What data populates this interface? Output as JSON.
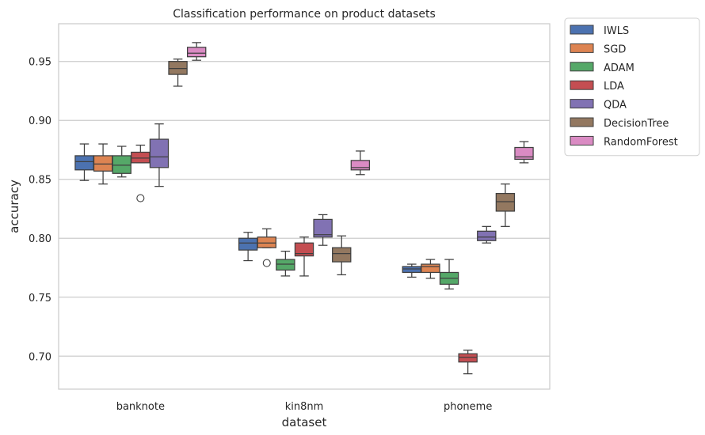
{
  "chart_data": {
    "type": "box",
    "title": "Classification performance on product datasets",
    "xlabel": "dataset",
    "ylabel": "accuracy",
    "ylim": [
      0.672,
      0.982
    ],
    "yticks": [
      0.7,
      0.75,
      0.8,
      0.85,
      0.9,
      0.95
    ],
    "ytick_labels": [
      "0.70",
      "0.75",
      "0.80",
      "0.85",
      "0.90",
      "0.95"
    ],
    "categories": [
      "banknote",
      "kin8nm",
      "phoneme"
    ],
    "grid": "horizontal",
    "legend_position": "outside-right",
    "series": [
      {
        "name": "IWLS",
        "color": "#4c72b0",
        "boxes": [
          {
            "whislo": 0.849,
            "q1": 0.858,
            "med": 0.865,
            "q3": 0.87,
            "whishi": 0.88,
            "fliers": []
          },
          {
            "whislo": 0.781,
            "q1": 0.79,
            "med": 0.796,
            "q3": 0.8,
            "whishi": 0.805,
            "fliers": []
          },
          {
            "whislo": 0.767,
            "q1": 0.771,
            "med": 0.774,
            "q3": 0.776,
            "whishi": 0.778,
            "fliers": []
          }
        ]
      },
      {
        "name": "SGD",
        "color": "#dd8452",
        "boxes": [
          {
            "whislo": 0.846,
            "q1": 0.857,
            "med": 0.863,
            "q3": 0.87,
            "whishi": 0.88,
            "fliers": []
          },
          {
            "whislo": 0.792,
            "q1": 0.792,
            "med": 0.796,
            "q3": 0.801,
            "whishi": 0.808,
            "fliers": [
              0.779
            ]
          },
          {
            "whislo": 0.766,
            "q1": 0.771,
            "med": 0.776,
            "q3": 0.778,
            "whishi": 0.782,
            "fliers": []
          }
        ]
      },
      {
        "name": "ADAM",
        "color": "#55a868",
        "boxes": [
          {
            "whislo": 0.852,
            "q1": 0.855,
            "med": 0.862,
            "q3": 0.87,
            "whishi": 0.878,
            "fliers": []
          },
          {
            "whislo": 0.768,
            "q1": 0.773,
            "med": 0.778,
            "q3": 0.782,
            "whishi": 0.789,
            "fliers": []
          },
          {
            "whislo": 0.757,
            "q1": 0.761,
            "med": 0.766,
            "q3": 0.771,
            "whishi": 0.782,
            "fliers": []
          }
        ]
      },
      {
        "name": "LDA",
        "color": "#c44e52",
        "boxes": [
          {
            "whislo": 0.864,
            "q1": 0.864,
            "med": 0.868,
            "q3": 0.873,
            "whishi": 0.879,
            "fliers": [
              0.834
            ]
          },
          {
            "whislo": 0.768,
            "q1": 0.785,
            "med": 0.787,
            "q3": 0.796,
            "whishi": 0.801,
            "fliers": []
          },
          {
            "whislo": 0.685,
            "q1": 0.695,
            "med": 0.699,
            "q3": 0.702,
            "whishi": 0.705,
            "fliers": []
          }
        ]
      },
      {
        "name": "QDA",
        "color": "#8172b3",
        "boxes": [
          {
            "whislo": 0.844,
            "q1": 0.86,
            "med": 0.869,
            "q3": 0.884,
            "whishi": 0.897,
            "fliers": []
          },
          {
            "whislo": 0.794,
            "q1": 0.801,
            "med": 0.803,
            "q3": 0.816,
            "whishi": 0.82,
            "fliers": []
          },
          {
            "whislo": 0.796,
            "q1": 0.798,
            "med": 0.801,
            "q3": 0.806,
            "whishi": 0.81,
            "fliers": []
          }
        ]
      },
      {
        "name": "DecisionTree",
        "color": "#937860",
        "boxes": [
          {
            "whislo": 0.929,
            "q1": 0.939,
            "med": 0.944,
            "q3": 0.95,
            "whishi": 0.952,
            "fliers": []
          },
          {
            "whislo": 0.769,
            "q1": 0.78,
            "med": 0.787,
            "q3": 0.792,
            "whishi": 0.802,
            "fliers": []
          },
          {
            "whislo": 0.81,
            "q1": 0.823,
            "med": 0.831,
            "q3": 0.838,
            "whishi": 0.846,
            "fliers": []
          }
        ]
      },
      {
        "name": "RandomForest",
        "color": "#da8bc3",
        "boxes": [
          {
            "whislo": 0.951,
            "q1": 0.954,
            "med": 0.957,
            "q3": 0.962,
            "whishi": 0.966,
            "fliers": []
          },
          {
            "whislo": 0.854,
            "q1": 0.858,
            "med": 0.86,
            "q3": 0.866,
            "whishi": 0.874,
            "fliers": []
          },
          {
            "whislo": 0.864,
            "q1": 0.867,
            "med": 0.869,
            "q3": 0.877,
            "whishi": 0.882,
            "fliers": []
          }
        ]
      }
    ]
  }
}
